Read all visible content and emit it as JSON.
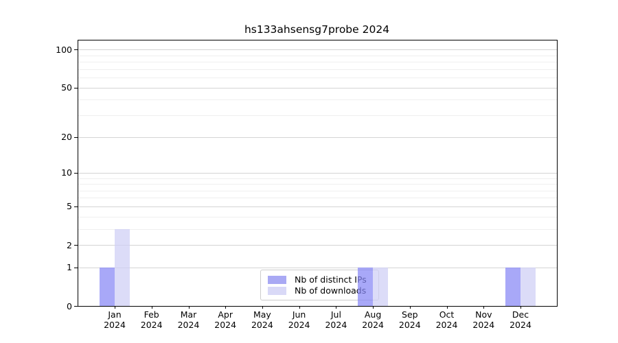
{
  "chart_data": {
    "type": "bar",
    "title": "hs133ahsensg7probe 2024",
    "categories": [
      "Jan 2024",
      "Feb 2024",
      "Mar 2024",
      "Apr 2024",
      "May 2024",
      "Jun 2024",
      "Jul 2024",
      "Aug 2024",
      "Sep 2024",
      "Oct 2024",
      "Nov 2024",
      "Dec 2024"
    ],
    "series": [
      {
        "key": "ips",
        "name": "Nb of distinct IPs",
        "fill": "rgba(134,134,245,0.72)",
        "legend_color": "#a9a9f4",
        "values": [
          1,
          0,
          0,
          0,
          0,
          0,
          0,
          1,
          0,
          0,
          0,
          1
        ]
      },
      {
        "key": "downloads",
        "name": "Nb of downloads",
        "fill": "rgba(206,206,245,0.72)",
        "legend_color": "#d9d9f7",
        "values": [
          3,
          0,
          0,
          0,
          0,
          0,
          0,
          1,
          0,
          0,
          0,
          1
        ]
      }
    ],
    "yscale": "log1p",
    "ylim": [
      0,
      118
    ],
    "yticks": [
      0,
      1,
      2,
      5,
      10,
      20,
      50,
      100
    ],
    "yticks_minor": [
      3,
      4,
      6,
      7,
      8,
      9,
      30,
      40,
      60,
      70,
      80,
      90
    ],
    "grid": true,
    "legend_position": "lower center inside plot",
    "colors": {
      "grid_major": "#d4d4d4",
      "grid_minor": "#efefef",
      "spine": "#000000",
      "background": "#ffffff",
      "text": "#000000"
    }
  }
}
